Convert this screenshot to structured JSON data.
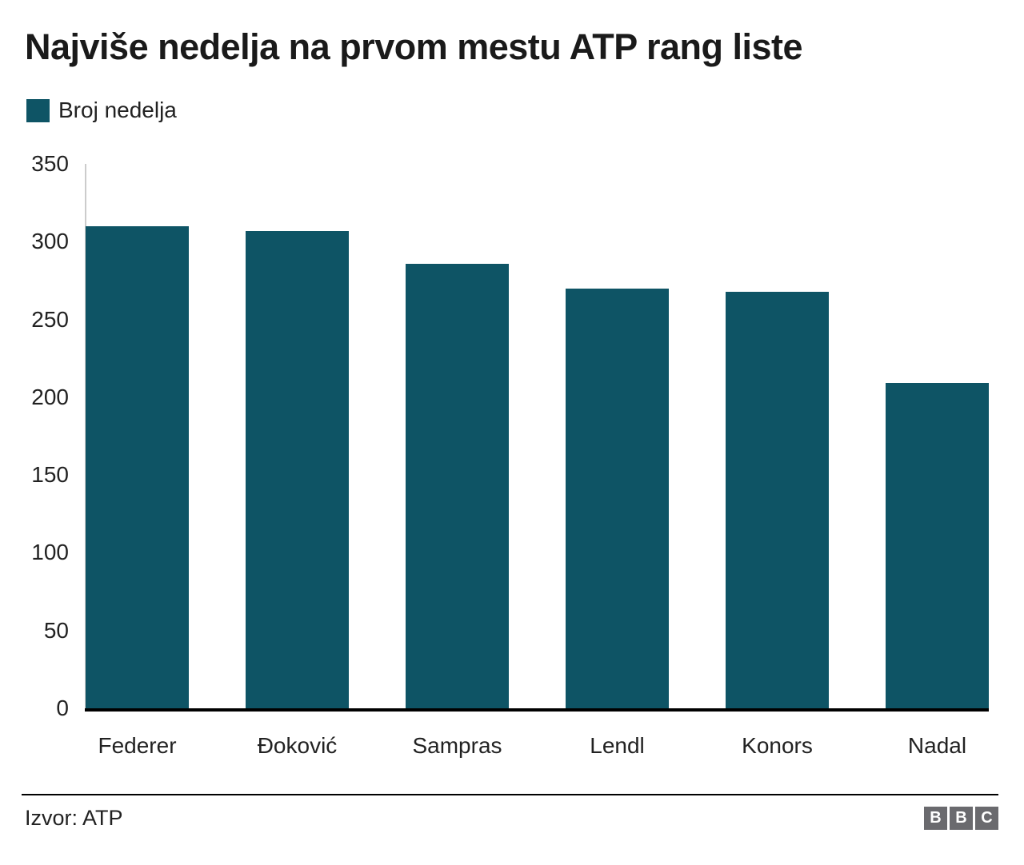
{
  "title": "Najviše nedelja na prvom mestu ATP rang liste",
  "legend": {
    "label": "Broj nedelja"
  },
  "source": "Izvor: ATP",
  "logo": {
    "letters": [
      "B",
      "B",
      "C"
    ]
  },
  "colors": {
    "bar": "#0E5465",
    "axis": "#000000",
    "y_axis_line": "#cccccc",
    "text": "#222222",
    "logo_gray": "#6a6a6e"
  },
  "chart_data": {
    "type": "bar",
    "title": "Najviše nedelja na prvom mestu ATP rang liste",
    "categories": [
      "Federer",
      "Đoković",
      "Sampras",
      "Lendl",
      "Konors",
      "Nadal"
    ],
    "values": [
      310,
      307,
      286,
      270,
      268,
      209
    ],
    "series_name": "Broj nedelja",
    "xlabel": "",
    "ylabel": "",
    "ylim": [
      0,
      350
    ],
    "yticks": [
      350,
      300,
      250,
      200,
      150,
      100,
      50,
      0
    ],
    "grid": false,
    "legend_position": "top-left",
    "source": "Izvor: ATP"
  }
}
